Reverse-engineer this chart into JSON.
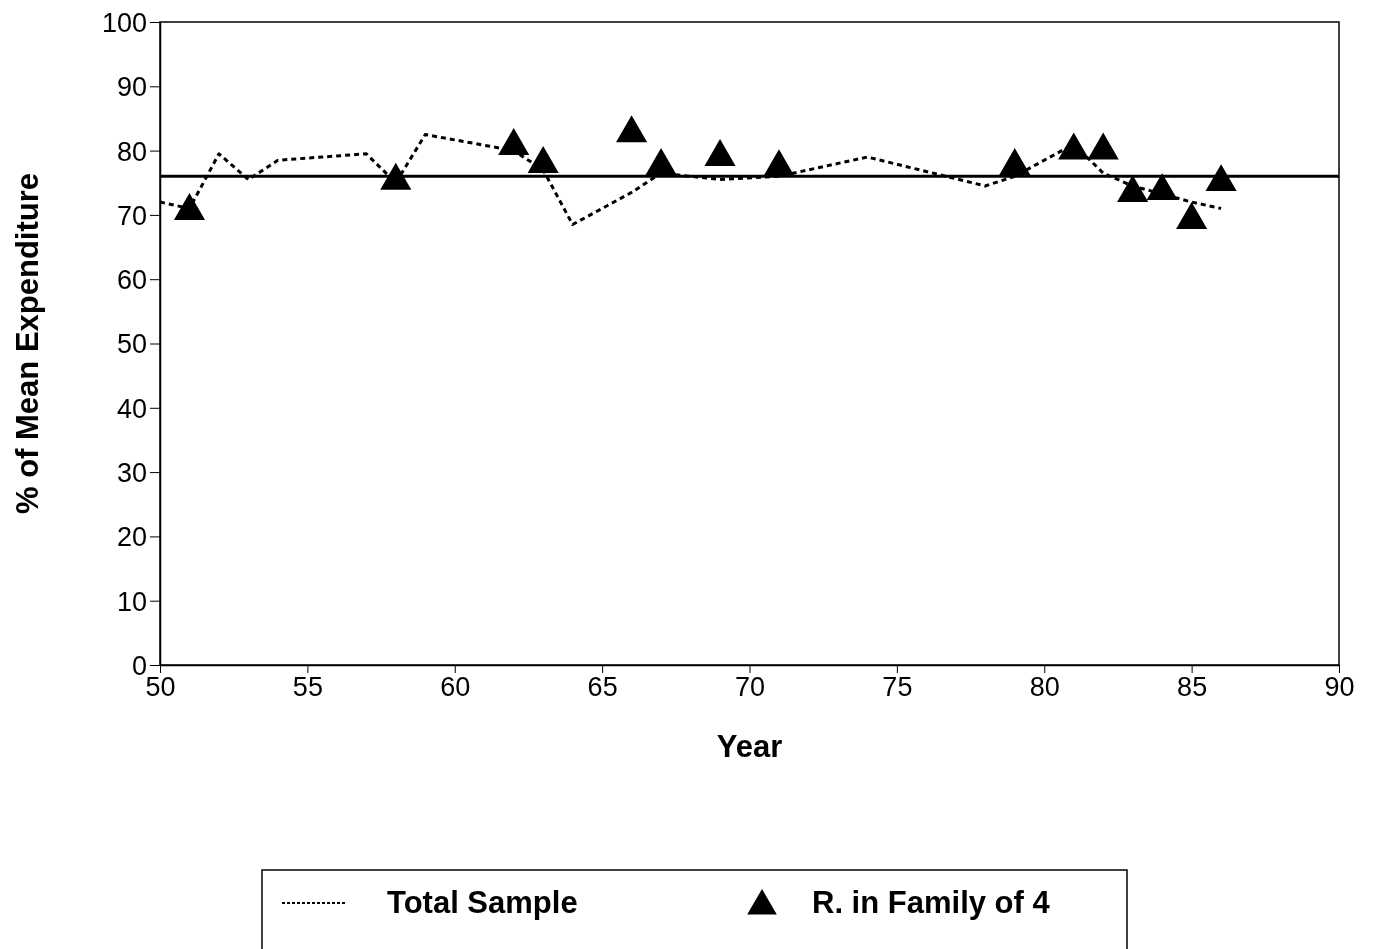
{
  "chart_data": {
    "type": "line",
    "xlabel": "Year",
    "ylabel": "% of Mean Expenditure",
    "xlim": [
      50,
      90
    ],
    "xticks": [
      50,
      55,
      60,
      65,
      70,
      75,
      80,
      85,
      90
    ],
    "ylim": [
      0,
      100
    ],
    "yticks": [
      0,
      10,
      20,
      30,
      40,
      50,
      60,
      70,
      80,
      90,
      100
    ],
    "grid": false,
    "legend": "bottom",
    "series": [
      {
        "name": "Total Sample",
        "type": "line",
        "color": "#000000",
        "line_style": "dashed",
        "marker": "none",
        "x": [
          50,
          51,
          52,
          53,
          54,
          57,
          58,
          59,
          62,
          63,
          64,
          66,
          67,
          69,
          71,
          74,
          78,
          79,
          81,
          82,
          83,
          85,
          86
        ],
        "values": [
          72,
          71,
          79.5,
          75.5,
          78.5,
          79.5,
          75,
          82.5,
          80,
          77,
          68.5,
          73.5,
          76.5,
          75.5,
          76,
          79,
          74.5,
          76,
          81,
          76.5,
          74.5,
          72,
          71
        ]
      },
      {
        "name": "R. in Family of 4",
        "type": "scatter",
        "color": "#000000",
        "marker": "triangle",
        "x": [
          51,
          58,
          62,
          63,
          66,
          67,
          69,
          71,
          79,
          81,
          82,
          83,
          84,
          85,
          86
        ],
        "values": [
          70.6,
          75.3,
          80.7,
          77.9,
          82.7,
          77.6,
          79,
          77.4,
          77.6,
          80,
          80,
          73.4,
          73.7,
          69.2,
          75.1
        ]
      }
    ],
    "ref_lines": [
      {
        "axis": "y",
        "value": 76,
        "color": "#000000",
        "line_style": "solid"
      }
    ]
  }
}
